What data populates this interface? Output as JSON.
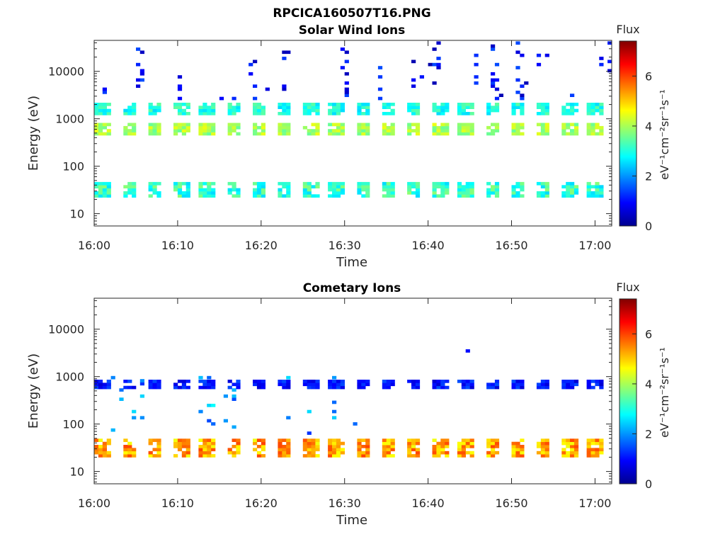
{
  "figure": {
    "title": "RPCICA160507T16.PNG"
  },
  "chart_data": [
    {
      "type": "heatmap",
      "title": "Solar Wind Ions",
      "xlabel": "Time",
      "ylabel": "Energy (eV)",
      "x_ticks": [
        "16:00",
        "16:10",
        "16:20",
        "16:30",
        "16:40",
        "16:50",
        "17:00"
      ],
      "x_range_min": [
        0,
        62
      ],
      "y_scale": "log",
      "y_range": [
        5.5,
        45000
      ],
      "y_ticks": [
        10,
        100,
        1000,
        10000
      ],
      "y_tick_labels": [
        "10",
        "100",
        "1000",
        "10000"
      ],
      "colorbar": {
        "label": "Flux",
        "units": "eV⁻¹cm⁻²sr⁻¹s⁻¹",
        "range": [
          0,
          7.4
        ],
        "ticks": [
          "0",
          "2",
          "4",
          "6"
        ],
        "colormap": "jet"
      },
      "bands": [
        {
          "name": "main ~600 eV",
          "energy_range": [
            450,
            800
          ],
          "flux_range": [
            3.5,
            4.5
          ],
          "period_min": 3.1
        },
        {
          "name": "secondary ~1500 eV",
          "energy_range": [
            1200,
            1900
          ],
          "flux_range": [
            2.5,
            3.5
          ],
          "period_min": 3.1
        },
        {
          "name": "low ~30 eV",
          "energy_range": [
            22,
            42
          ],
          "flux_range": [
            2.5,
            3.8
          ],
          "period_min": 3.1
        },
        {
          "name": "sparse high",
          "energy_range": [
            2500,
            40000
          ],
          "flux_range": [
            0.3,
            1.5
          ]
        }
      ]
    },
    {
      "type": "heatmap",
      "title": "Cometary Ions",
      "xlabel": "Time",
      "ylabel": "Energy (eV)",
      "x_ticks": [
        "16:00",
        "16:10",
        "16:20",
        "16:30",
        "16:40",
        "16:50",
        "17:00"
      ],
      "x_range_min": [
        0,
        62
      ],
      "y_scale": "log",
      "y_range": [
        5.5,
        45000
      ],
      "y_ticks": [
        10,
        100,
        1000,
        10000
      ],
      "y_tick_labels": [
        "10",
        "100",
        "1000",
        "10000"
      ],
      "colorbar": {
        "label": "Flux",
        "units": "eV⁻¹cm⁻²sr⁻¹s⁻¹",
        "range": [
          0,
          7.4
        ],
        "ticks": [
          "0",
          "2",
          "4",
          "6"
        ],
        "colormap": "jet"
      },
      "bands": [
        {
          "name": "cometary core ~30 eV",
          "energy_range": [
            20,
            45
          ],
          "flux_range": [
            4.5,
            6.0
          ],
          "period_min": 3.1
        },
        {
          "name": "pickup streaks",
          "energy_range": [
            60,
            900
          ],
          "flux_range": [
            1.2,
            2.8
          ],
          "time_range_min": [
            0,
            33
          ]
        },
        {
          "name": "~650 eV blobs",
          "energy_range": [
            550,
            800
          ],
          "flux_range": [
            0.6,
            1.5
          ],
          "period_min": 3.1
        },
        {
          "name": "high 3000 eV",
          "energy_range": [
            2800,
            3400
          ],
          "flux_range": [
            0.6,
            1.2
          ],
          "time_range_min": [
            44,
            56
          ]
        }
      ]
    }
  ]
}
